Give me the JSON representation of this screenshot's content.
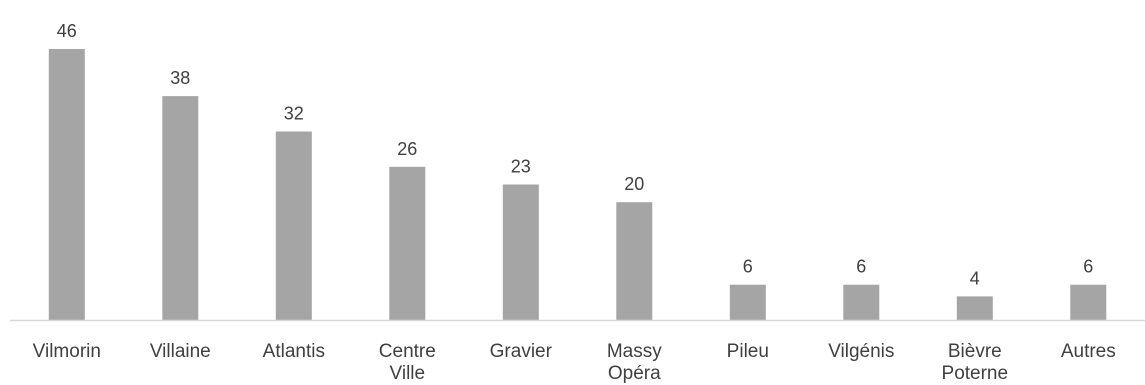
{
  "chart_data": {
    "type": "bar",
    "categories": [
      "Vilmorin",
      "Villaine",
      "Atlantis",
      "Centre Ville",
      "Gravier",
      "Massy Opéra",
      "Pileu",
      "Vilgénis",
      "Bièvre Poterne",
      "Autres"
    ],
    "category_lines": [
      [
        "Vilmorin"
      ],
      [
        "Villaine"
      ],
      [
        "Atlantis"
      ],
      [
        "Centre",
        "Ville"
      ],
      [
        "Gravier"
      ],
      [
        "Massy",
        "Opéra"
      ],
      [
        "Pileu"
      ],
      [
        "Vilgénis"
      ],
      [
        "Bièvre",
        "Poterne"
      ],
      [
        "Autres"
      ]
    ],
    "values": [
      46,
      38,
      32,
      26,
      23,
      20,
      6,
      6,
      4,
      6
    ],
    "data_labels": [
      "46",
      "38",
      "32",
      "26",
      "23",
      "20",
      "6",
      "6",
      "4",
      "6"
    ],
    "title": "",
    "xlabel": "",
    "ylabel": "",
    "ylim": [
      0,
      46
    ],
    "grid": false,
    "legend": "none",
    "bar_color": "#a5a5a5",
    "axis_color": "#d9d9d9",
    "text_color": "#404040"
  }
}
